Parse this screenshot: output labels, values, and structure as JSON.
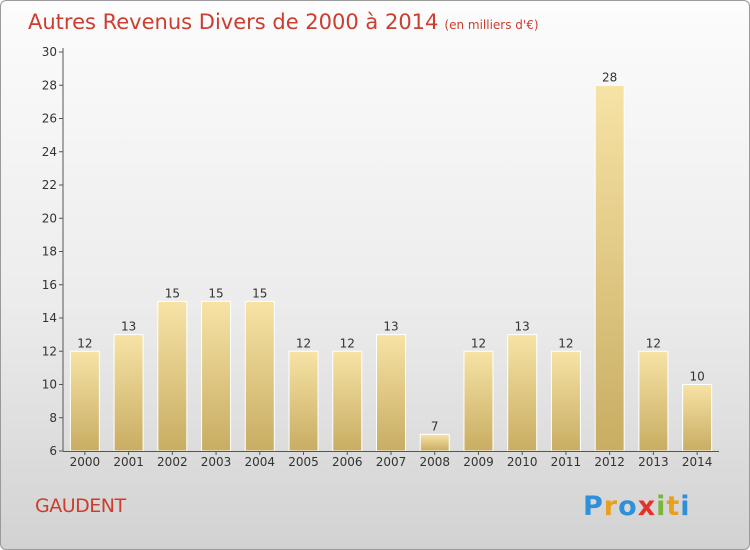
{
  "title": "Autres Revenus Divers de 2000 à 2014",
  "subtitle": "(en milliers d'€)",
  "commune": "GAUDENT",
  "logo": {
    "letters": [
      {
        "char": "P",
        "color": "#2f8fd8"
      },
      {
        "char": "r",
        "color": "#e8a020"
      },
      {
        "char": "o",
        "color": "#2f8fd8"
      },
      {
        "char": "x",
        "color": "#e2332b"
      },
      {
        "char": "i",
        "color": "#7ab63a"
      },
      {
        "char": "t",
        "color": "#e8a020"
      },
      {
        "char": "i",
        "color": "#2f8fd8"
      }
    ]
  },
  "colors": {
    "accent": "#cc3d2f",
    "bar_light": "#f7e3a6",
    "bar_dark": "#c8ad62"
  },
  "chart_data": {
    "type": "bar",
    "categories": [
      "2000",
      "2001",
      "2002",
      "2003",
      "2004",
      "2005",
      "2006",
      "2007",
      "2008",
      "2009",
      "2010",
      "2011",
      "2012",
      "2013",
      "2014"
    ],
    "values": [
      12,
      13,
      15,
      15,
      15,
      12,
      12,
      13,
      7,
      12,
      13,
      12,
      28,
      12,
      10
    ],
    "title": "Autres Revenus Divers de 2000 à 2014",
    "subtitle": "(en milliers d'€)",
    "ylim": [
      6,
      30
    ],
    "yticks": [
      6,
      8,
      10,
      12,
      14,
      16,
      18,
      20,
      22,
      24,
      26,
      28,
      30
    ],
    "grid": false,
    "legend": "none"
  }
}
